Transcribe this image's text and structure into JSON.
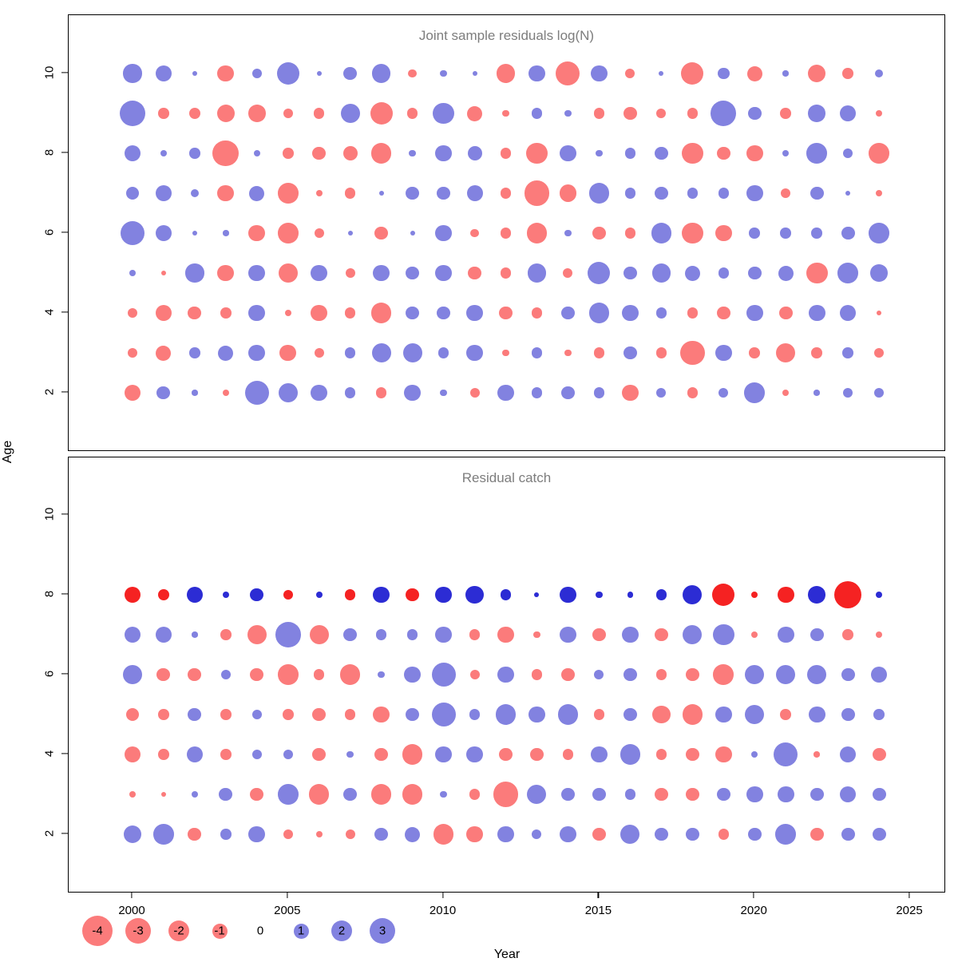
{
  "chart_data": {
    "type": "scatter",
    "subtype": "bubble-residual-matrix",
    "xlabel": "Year",
    "ylabel": "Age",
    "x_ticks": [
      2000,
      2005,
      2010,
      2015,
      2020,
      2025
    ],
    "y_ticks": [
      2,
      4,
      6,
      8,
      10
    ],
    "years": [
      2000,
      2001,
      2002,
      2003,
      2004,
      2005,
      2006,
      2007,
      2008,
      2009,
      2010,
      2011,
      2012,
      2013,
      2014,
      2015,
      2016,
      2017,
      2018,
      2019,
      2020,
      2021,
      2022,
      2023,
      2024
    ],
    "xlim": [
      1998.9,
      2025.6
    ],
    "ylim": [
      1,
      11
    ],
    "grid": false,
    "colors": {
      "negative": "#fb7b7b",
      "positive": "#8282e0",
      "negative_strong": "#f52222",
      "positive_strong": "#2c2cd4",
      "title": "#7d7d7d"
    },
    "panels": [
      {
        "name": "joint-sample-residuals",
        "title": "Joint sample residuals log(N)",
        "rows": [
          {
            "age": 10,
            "values": [
              1.5,
              1.2,
              0.1,
              -1.2,
              0.4,
              2.2,
              0.1,
              0.8,
              1.5,
              -0.3,
              0.2,
              0.1,
              -1.5,
              1.2,
              -2.5,
              1.2,
              -0.4,
              0.1,
              -2.2,
              0.6,
              -1.0,
              0.15,
              -1.4,
              -0.5,
              0.3
            ]
          },
          {
            "age": 9,
            "values": [
              3.0,
              -0.5,
              -0.6,
              -1.4,
              -1.3,
              -0.4,
              -0.5,
              1.6,
              -2.2,
              -0.5,
              2.0,
              -1.0,
              -0.2,
              0.5,
              0.2,
              -0.5,
              -0.8,
              -0.4,
              -0.5,
              2.8,
              0.8,
              -0.5,
              1.3,
              1.1,
              -0.2
            ]
          },
          {
            "age": 8,
            "values": [
              1.2,
              0.2,
              0.5,
              -3.0,
              0.2,
              -0.5,
              -0.8,
              -0.9,
              -1.8,
              0.2,
              1.2,
              0.9,
              -0.5,
              -2.0,
              1.2,
              0.2,
              0.5,
              0.8,
              -2.0,
              -0.8,
              -1.2,
              0.2,
              1.8,
              0.4,
              -1.8
            ]
          },
          {
            "age": 7,
            "values": [
              0.8,
              1.2,
              0.3,
              -1.2,
              1.0,
              -1.8,
              -0.2,
              -0.5,
              0.1,
              0.8,
              0.8,
              1.1,
              -0.5,
              -2.8,
              -1.3,
              1.8,
              0.5,
              0.8,
              0.5,
              0.5,
              1.2,
              -0.4,
              0.8,
              0.1,
              -0.2
            ]
          },
          {
            "age": 6,
            "values": [
              2.5,
              1.2,
              0.1,
              0.15,
              -1.2,
              -1.8,
              -0.4,
              0.1,
              -0.8,
              0.1,
              1.2,
              -0.3,
              -0.5,
              -1.8,
              0.2,
              -0.8,
              -0.5,
              1.8,
              -2.0,
              -1.2,
              0.5,
              0.5,
              0.5,
              0.8,
              1.8
            ]
          },
          {
            "age": 5,
            "values": [
              0.2,
              -0.1,
              1.5,
              -1.2,
              1.2,
              -1.6,
              1.2,
              -0.4,
              1.2,
              0.8,
              1.2,
              -0.8,
              -0.5,
              1.5,
              -0.4,
              2.2,
              0.8,
              1.5,
              1.0,
              0.5,
              0.8,
              1.0,
              -2.0,
              1.8,
              1.3
            ]
          },
          {
            "age": 4,
            "values": [
              -0.4,
              -1.2,
              -0.8,
              -0.5,
              1.2,
              -0.2,
              -1.2,
              -0.5,
              -1.8,
              0.8,
              0.8,
              1.2,
              -0.8,
              -0.5,
              0.8,
              1.8,
              1.2,
              0.5,
              -0.5,
              -0.8,
              1.2,
              -0.8,
              1.2,
              1.2,
              -0.1
            ]
          },
          {
            "age": 3,
            "values": [
              -0.4,
              -1.0,
              0.5,
              1.0,
              1.2,
              -1.2,
              -0.4,
              0.5,
              1.6,
              1.6,
              0.5,
              1.2,
              -0.2,
              0.5,
              -0.2,
              -0.5,
              0.8,
              -0.5,
              -2.6,
              1.2,
              -0.5,
              -1.6,
              -0.5,
              0.5,
              -0.4
            ]
          },
          {
            "age": 2,
            "values": [
              -1.2,
              0.8,
              0.15,
              -0.2,
              2.6,
              1.6,
              1.2,
              0.5,
              -0.5,
              1.2,
              0.2,
              -0.4,
              1.2,
              0.5,
              0.8,
              0.5,
              -1.2,
              0.4,
              -0.5,
              0.4,
              1.8,
              -0.2,
              0.15,
              0.4,
              0.4
            ]
          }
        ]
      },
      {
        "name": "residual-catch",
        "title": "Residual catch",
        "rows": [
          {
            "age": 8,
            "strong": true,
            "values": [
              -1.2,
              -0.6,
              1.2,
              0.2,
              0.8,
              -0.4,
              0.2,
              -0.5,
              1.2,
              -0.8,
              1.2,
              1.4,
              0.5,
              0.1,
              1.2,
              0.2,
              0.15,
              0.5,
              1.6,
              -2.2,
              -0.2,
              -1.2,
              1.3,
              -3.2,
              0.2
            ]
          },
          {
            "age": 7,
            "values": [
              1.2,
              1.2,
              0.15,
              -0.5,
              -1.6,
              2.8,
              -1.6,
              0.8,
              0.5,
              0.5,
              1.2,
              -0.5,
              -1.2,
              -0.2,
              1.2,
              -0.8,
              1.2,
              -0.8,
              1.6,
              2.0,
              -0.2,
              1.2,
              0.8,
              -0.5,
              -0.2
            ]
          },
          {
            "age": 6,
            "values": [
              1.6,
              -0.8,
              -0.8,
              0.4,
              -0.8,
              -1.8,
              -0.5,
              -1.8,
              0.2,
              1.2,
              2.5,
              -0.4,
              1.2,
              -0.5,
              -0.8,
              0.4,
              0.8,
              -0.5,
              -0.8,
              -1.8,
              1.6,
              1.6,
              1.6,
              0.8,
              1.2
            ]
          },
          {
            "age": 5,
            "values": [
              -0.8,
              -0.5,
              0.8,
              -0.5,
              0.4,
              -0.5,
              -0.8,
              -0.5,
              -1.2,
              0.8,
              2.5,
              0.5,
              1.8,
              1.2,
              1.8,
              -0.5,
              0.8,
              -1.4,
              -1.8,
              1.2,
              1.6,
              -0.5,
              1.2,
              0.8,
              0.5
            ]
          },
          {
            "age": 4,
            "values": [
              -1.2,
              -0.5,
              1.2,
              -0.5,
              0.4,
              0.4,
              -0.8,
              0.2,
              -0.8,
              -1.8,
              1.2,
              1.2,
              -0.8,
              -0.8,
              -0.5,
              1.2,
              1.8,
              -0.5,
              -0.8,
              -1.2,
              0.2,
              2.5,
              -0.15,
              1.2,
              -0.8
            ]
          },
          {
            "age": 3,
            "values": [
              -0.2,
              -0.1,
              0.2,
              0.8,
              -0.8,
              1.8,
              -1.8,
              0.8,
              -1.8,
              -1.8,
              0.2,
              -0.5,
              -2.8,
              1.6,
              0.8,
              0.8,
              0.5,
              -0.8,
              -0.8,
              0.8,
              1.2,
              1.2,
              0.8,
              1.2,
              0.8
            ]
          },
          {
            "age": 2,
            "values": [
              1.4,
              1.8,
              -0.8,
              0.5,
              1.2,
              -0.4,
              -0.2,
              -0.4,
              0.8,
              1.0,
              -1.8,
              -1.2,
              1.2,
              0.4,
              1.2,
              -0.8,
              1.6,
              0.8,
              0.8,
              -0.5,
              0.8,
              1.8,
              -0.8,
              0.8,
              0.8
            ]
          }
        ]
      }
    ],
    "legend": {
      "position": "bottom-left",
      "items": [
        {
          "label": "-4",
          "value": -4
        },
        {
          "label": "-3",
          "value": -3
        },
        {
          "label": "-2",
          "value": -2
        },
        {
          "label": "-1",
          "value": -1
        },
        {
          "label": "0",
          "value": 0
        },
        {
          "label": "1",
          "value": 1
        },
        {
          "label": "2",
          "value": 2
        },
        {
          "label": "3",
          "value": 3
        }
      ]
    }
  }
}
